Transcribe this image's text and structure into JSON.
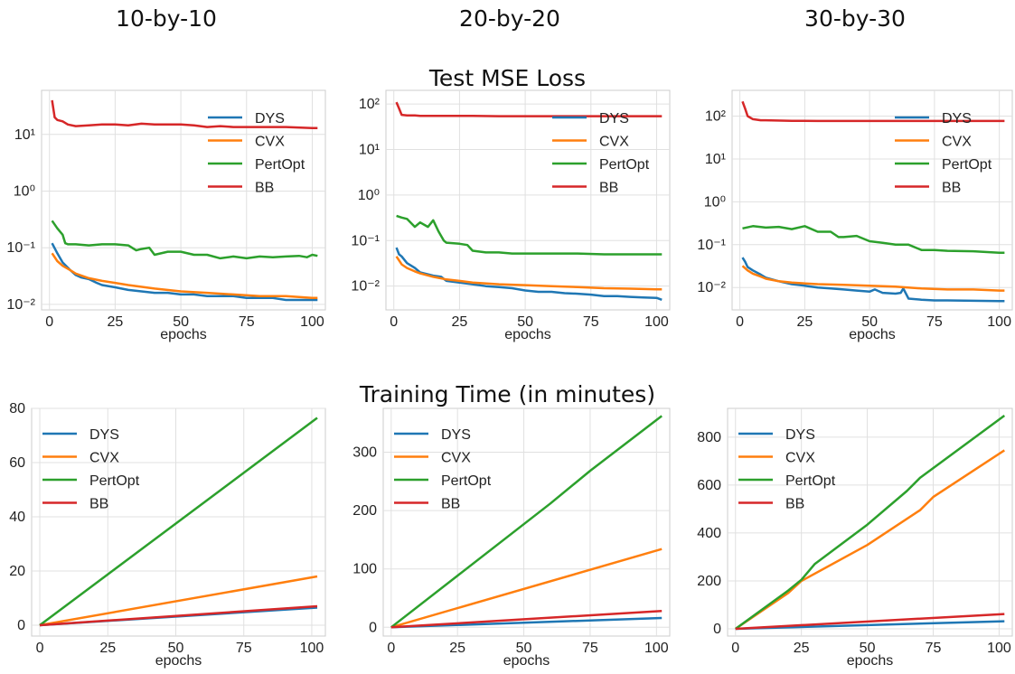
{
  "column_titles": [
    "10-by-10",
    "20-by-20",
    "30-by-30"
  ],
  "row_titles": [
    "Test MSE Loss",
    "Training Time (in minutes)"
  ],
  "colors": {
    "DYS": "#1f77b4",
    "CVX": "#ff7f0e",
    "PertOpt": "#2ca02c",
    "BB": "#d62728"
  },
  "chart_data": [
    {
      "type": "line",
      "title": "",
      "xlabel": "epochs",
      "ylabel": "",
      "yscale": "log",
      "xlim": [
        -3,
        105
      ],
      "ylim": [
        0.008,
        60
      ],
      "xticks": [
        0,
        25,
        50,
        75,
        100
      ],
      "yticks": [
        {
          "v": 0.01,
          "label": "10⁻²"
        },
        {
          "v": 0.1,
          "label": "10⁻¹"
        },
        {
          "v": 1,
          "label": "10⁰"
        },
        {
          "v": 10,
          "label": "10¹"
        }
      ],
      "grid": true,
      "legend": "top-right",
      "series": [
        {
          "name": "DYS",
          "x": [
            1,
            3,
            5,
            8,
            10,
            12,
            15,
            18,
            20,
            25,
            30,
            35,
            40,
            45,
            50,
            55,
            60,
            65,
            70,
            75,
            80,
            85,
            90,
            95,
            100,
            102
          ],
          "y": [
            0.12,
            0.08,
            0.055,
            0.04,
            0.033,
            0.03,
            0.028,
            0.024,
            0.022,
            0.02,
            0.018,
            0.017,
            0.016,
            0.016,
            0.015,
            0.015,
            0.014,
            0.014,
            0.014,
            0.013,
            0.013,
            0.013,
            0.012,
            0.012,
            0.012,
            0.012
          ]
        },
        {
          "name": "CVX",
          "x": [
            1,
            3,
            5,
            8,
            10,
            15,
            20,
            25,
            30,
            40,
            50,
            60,
            70,
            80,
            90,
            100,
            102
          ],
          "y": [
            0.08,
            0.058,
            0.048,
            0.04,
            0.035,
            0.029,
            0.026,
            0.024,
            0.022,
            0.019,
            0.017,
            0.016,
            0.015,
            0.014,
            0.014,
            0.013,
            0.013
          ]
        },
        {
          "name": "PertOpt",
          "x": [
            1,
            3,
            5,
            6,
            7,
            10,
            15,
            20,
            25,
            30,
            33,
            35,
            38,
            40,
            45,
            50,
            55,
            60,
            65,
            70,
            75,
            80,
            85,
            90,
            95,
            98,
            100,
            102
          ],
          "y": [
            0.3,
            0.22,
            0.17,
            0.12,
            0.115,
            0.115,
            0.11,
            0.115,
            0.115,
            0.11,
            0.09,
            0.095,
            0.1,
            0.075,
            0.085,
            0.085,
            0.075,
            0.075,
            0.065,
            0.07,
            0.065,
            0.07,
            0.068,
            0.07,
            0.072,
            0.068,
            0.075,
            0.072
          ]
        },
        {
          "name": "BB",
          "x": [
            1,
            2,
            3,
            5,
            7,
            10,
            15,
            20,
            25,
            30,
            35,
            40,
            50,
            55,
            60,
            65,
            70,
            80,
            90,
            100,
            102
          ],
          "y": [
            40,
            20,
            18,
            17,
            15,
            14,
            14.5,
            15,
            15,
            14.5,
            15.5,
            15,
            15,
            14.5,
            13.5,
            14,
            13.5,
            13.5,
            13.5,
            13,
            13
          ]
        }
      ]
    },
    {
      "type": "line",
      "title": "",
      "xlabel": "epochs",
      "ylabel": "",
      "yscale": "log",
      "xlim": [
        -3,
        105
      ],
      "ylim": [
        0.003,
        200
      ],
      "xticks": [
        0,
        25,
        50,
        75,
        100
      ],
      "yticks": [
        {
          "v": 0.01,
          "label": "10⁻²"
        },
        {
          "v": 0.1,
          "label": "10⁻¹"
        },
        {
          "v": 1,
          "label": "10⁰"
        },
        {
          "v": 10,
          "label": "10¹"
        },
        {
          "v": 100,
          "label": "10²"
        }
      ],
      "grid": true,
      "legend": "top-right",
      "series": [
        {
          "name": "DYS",
          "x": [
            1,
            2,
            3,
            5,
            8,
            10,
            15,
            18,
            20,
            25,
            30,
            35,
            40,
            45,
            50,
            55,
            60,
            65,
            70,
            75,
            80,
            85,
            90,
            95,
            100,
            102
          ],
          "y": [
            0.07,
            0.05,
            0.045,
            0.032,
            0.025,
            0.02,
            0.017,
            0.016,
            0.013,
            0.012,
            0.011,
            0.01,
            0.0095,
            0.009,
            0.008,
            0.0075,
            0.0075,
            0.007,
            0.0068,
            0.0065,
            0.006,
            0.006,
            0.0058,
            0.0056,
            0.0055,
            0.005
          ]
        },
        {
          "name": "CVX",
          "x": [
            1,
            3,
            5,
            8,
            10,
            15,
            20,
            25,
            30,
            40,
            50,
            60,
            70,
            80,
            90,
            100,
            102
          ],
          "y": [
            0.045,
            0.03,
            0.025,
            0.021,
            0.019,
            0.016,
            0.014,
            0.013,
            0.012,
            0.011,
            0.0105,
            0.01,
            0.0095,
            0.009,
            0.0088,
            0.0085,
            0.0085
          ]
        },
        {
          "name": "PertOpt",
          "x": [
            1,
            3,
            5,
            8,
            10,
            13,
            15,
            17,
            19,
            20,
            25,
            28,
            30,
            35,
            40,
            45,
            50,
            60,
            70,
            80,
            90,
            100,
            102
          ],
          "y": [
            0.35,
            0.32,
            0.3,
            0.2,
            0.25,
            0.2,
            0.28,
            0.16,
            0.1,
            0.09,
            0.085,
            0.08,
            0.06,
            0.055,
            0.055,
            0.052,
            0.052,
            0.052,
            0.052,
            0.05,
            0.05,
            0.05,
            0.05
          ]
        },
        {
          "name": "BB",
          "x": [
            1,
            2,
            3,
            5,
            8,
            10,
            20,
            30,
            40,
            50,
            60,
            70,
            80,
            90,
            100,
            102
          ],
          "y": [
            110,
            80,
            58,
            56,
            56,
            55,
            55,
            55,
            54,
            54,
            54,
            54,
            54,
            54,
            54,
            54
          ]
        }
      ]
    },
    {
      "type": "line",
      "title": "",
      "xlabel": "epochs",
      "ylabel": "",
      "yscale": "log",
      "xlim": [
        -3,
        105
      ],
      "ylim": [
        0.003,
        400
      ],
      "xticks": [
        0,
        25,
        50,
        75,
        100
      ],
      "yticks": [
        {
          "v": 0.01,
          "label": "10⁻²"
        },
        {
          "v": 0.1,
          "label": "10⁻¹"
        },
        {
          "v": 1,
          "label": "10⁰"
        },
        {
          "v": 10,
          "label": "10¹"
        },
        {
          "v": 100,
          "label": "10²"
        }
      ],
      "grid": true,
      "legend": "top-right",
      "series": [
        {
          "name": "DYS",
          "x": [
            1,
            2,
            3,
            5,
            8,
            10,
            15,
            20,
            25,
            30,
            35,
            40,
            45,
            50,
            52,
            55,
            60,
            62,
            63,
            65,
            70,
            75,
            80,
            90,
            100,
            102
          ],
          "y": [
            0.05,
            0.04,
            0.03,
            0.025,
            0.02,
            0.017,
            0.014,
            0.012,
            0.011,
            0.01,
            0.0095,
            0.009,
            0.0085,
            0.008,
            0.009,
            0.0075,
            0.0072,
            0.0075,
            0.0095,
            0.0055,
            0.0052,
            0.005,
            0.005,
            0.0049,
            0.0048,
            0.0048
          ]
        },
        {
          "name": "CVX",
          "x": [
            1,
            3,
            5,
            8,
            10,
            15,
            20,
            30,
            40,
            50,
            60,
            70,
            80,
            90,
            100,
            102
          ],
          "y": [
            0.032,
            0.025,
            0.021,
            0.018,
            0.016,
            0.014,
            0.013,
            0.012,
            0.0115,
            0.011,
            0.0105,
            0.0095,
            0.009,
            0.009,
            0.0085,
            0.0085
          ]
        },
        {
          "name": "PertOpt",
          "x": [
            1,
            5,
            10,
            15,
            20,
            25,
            30,
            35,
            38,
            40,
            45,
            50,
            55,
            60,
            65,
            70,
            75,
            80,
            90,
            100,
            102
          ],
          "y": [
            0.24,
            0.27,
            0.25,
            0.26,
            0.23,
            0.27,
            0.2,
            0.2,
            0.15,
            0.15,
            0.16,
            0.12,
            0.11,
            0.1,
            0.1,
            0.075,
            0.075,
            0.072,
            0.07,
            0.065,
            0.065
          ]
        },
        {
          "name": "BB",
          "x": [
            1,
            2,
            3,
            5,
            8,
            10,
            20,
            30,
            40,
            50,
            60,
            70,
            80,
            90,
            100,
            102
          ],
          "y": [
            220,
            150,
            100,
            85,
            80,
            80,
            78,
            77,
            77,
            77,
            77,
            77,
            77,
            77,
            77,
            77
          ]
        }
      ]
    },
    {
      "type": "line",
      "title": "",
      "xlabel": "epochs",
      "ylabel": "",
      "yscale": "linear",
      "xlim": [
        -3,
        105
      ],
      "ylim": [
        -4,
        80
      ],
      "xticks": [
        0,
        25,
        50,
        75,
        100
      ],
      "yticks": [
        {
          "v": 0,
          "label": "0"
        },
        {
          "v": 20,
          "label": "20"
        },
        {
          "v": 40,
          "label": "40"
        },
        {
          "v": 60,
          "label": "60"
        },
        {
          "v": 80,
          "label": "80"
        }
      ],
      "grid": true,
      "legend": "top-left",
      "series": [
        {
          "name": "DYS",
          "x": [
            0,
            102
          ],
          "y": [
            0,
            6.5
          ]
        },
        {
          "name": "CVX",
          "x": [
            0,
            102
          ],
          "y": [
            0,
            18
          ]
        },
        {
          "name": "PertOpt",
          "x": [
            0,
            102
          ],
          "y": [
            0,
            76.5
          ]
        },
        {
          "name": "BB",
          "x": [
            0,
            102
          ],
          "y": [
            0,
            7
          ]
        }
      ]
    },
    {
      "type": "line",
      "title": "",
      "xlabel": "epochs",
      "ylabel": "",
      "yscale": "linear",
      "xlim": [
        -3,
        105
      ],
      "ylim": [
        -15,
        375
      ],
      "xticks": [
        0,
        25,
        50,
        75,
        100
      ],
      "yticks": [
        {
          "v": 0,
          "label": "0"
        },
        {
          "v": 100,
          "label": "100"
        },
        {
          "v": 200,
          "label": "200"
        },
        {
          "v": 300,
          "label": "300"
        }
      ],
      "grid": true,
      "legend": "top-left",
      "series": [
        {
          "name": "DYS",
          "x": [
            0,
            102
          ],
          "y": [
            0,
            16
          ]
        },
        {
          "name": "CVX",
          "x": [
            0,
            102
          ],
          "y": [
            0,
            134
          ]
        },
        {
          "name": "PertOpt",
          "x": [
            0,
            60,
            75,
            102
          ],
          "y": [
            0,
            212,
            268,
            362
          ]
        },
        {
          "name": "BB",
          "x": [
            0,
            102
          ],
          "y": [
            0,
            28
          ]
        }
      ]
    },
    {
      "type": "line",
      "title": "",
      "xlabel": "epochs",
      "ylabel": "",
      "yscale": "linear",
      "xlim": [
        -3,
        105
      ],
      "ylim": [
        -30,
        920
      ],
      "xticks": [
        0,
        25,
        50,
        75,
        100
      ],
      "yticks": [
        {
          "v": 0,
          "label": "0"
        },
        {
          "v": 200,
          "label": "200"
        },
        {
          "v": 400,
          "label": "400"
        },
        {
          "v": 600,
          "label": "600"
        },
        {
          "v": 800,
          "label": "800"
        }
      ],
      "grid": true,
      "legend": "top-left",
      "series": [
        {
          "name": "DYS",
          "x": [
            0,
            102
          ],
          "y": [
            0,
            32
          ]
        },
        {
          "name": "CVX",
          "x": [
            0,
            20,
            25,
            50,
            70,
            75,
            102
          ],
          "y": [
            0,
            150,
            200,
            350,
            495,
            550,
            745
          ]
        },
        {
          "name": "PertOpt",
          "x": [
            0,
            20,
            25,
            30,
            50,
            65,
            70,
            102
          ],
          "y": [
            0,
            160,
            205,
            270,
            435,
            575,
            630,
            890
          ]
        },
        {
          "name": "BB",
          "x": [
            0,
            102
          ],
          "y": [
            0,
            62
          ]
        }
      ]
    }
  ]
}
